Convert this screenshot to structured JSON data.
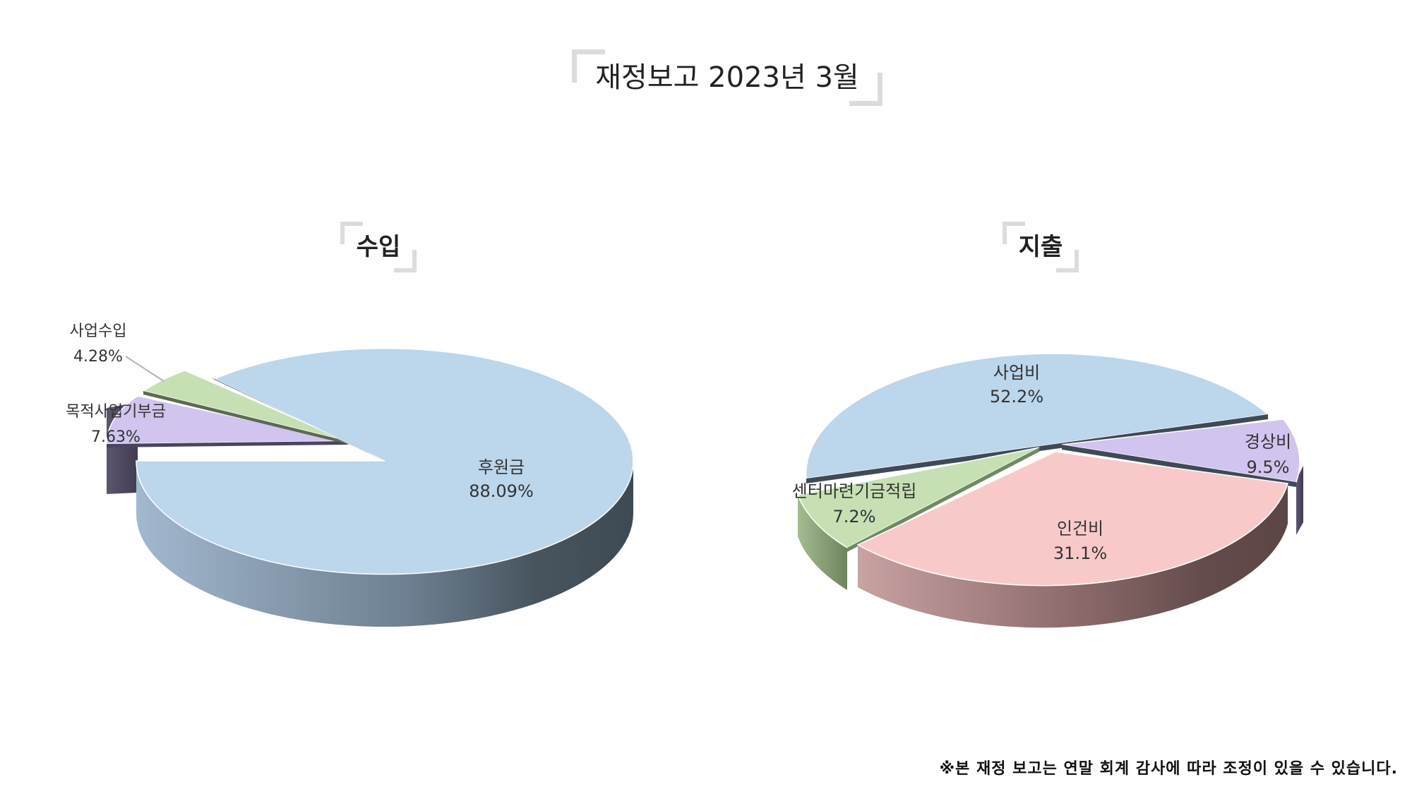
{
  "title": "재정보고 2023년 3월",
  "footnote": "※본 재정 보고는 연말 회계 감사에 따라 조정이 있을 수 있습니다.",
  "chart_data": [
    {
      "type": "pie",
      "title": "수입",
      "labels": [
        "후원금",
        "목적사업기부금",
        "사업수입"
      ],
      "values": [
        88.09,
        7.63,
        4.28
      ],
      "value_labels": [
        "88.09%",
        "7.63%",
        "4.28%"
      ],
      "colors": [
        "#bcd6eb",
        "#d1c4ee",
        "#c6e0b4"
      ],
      "exploded": [
        "목적사업기부금",
        "사업수입"
      ]
    },
    {
      "type": "pie",
      "title": "지출",
      "labels": [
        "사업비",
        "경상비",
        "인건비",
        "센터마련기금적립"
      ],
      "values": [
        52.2,
        9.5,
        31.1,
        7.2
      ],
      "value_labels": [
        "52.2%",
        "9.5%",
        "31.1%",
        "7.2%"
      ],
      "colors": [
        "#bcd6eb",
        "#d1c4ee",
        "#f9c9c9",
        "#c6e0b4"
      ],
      "exploded": [
        "사업비",
        "경상비",
        "인건비",
        "센터마련기금적립"
      ]
    }
  ]
}
